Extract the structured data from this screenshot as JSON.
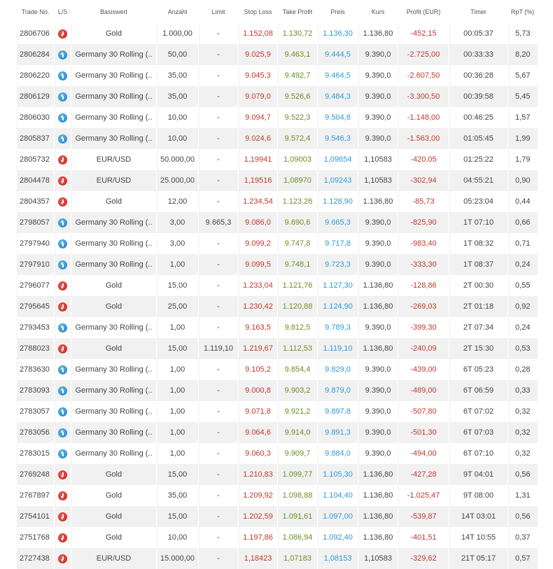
{
  "colors": {
    "stop_loss": "#c0392b",
    "take_profit": "#6b8e23",
    "preis": "#2e9ad6",
    "profit": "#c0392b",
    "long": "#2a8ed0",
    "short": "#d9302a"
  },
  "headers": [
    "Trade No.",
    "L/S",
    "Basiswert",
    "Anzahl",
    "Limit",
    "Stop Loss",
    "Take Profit",
    "Preis",
    "Kurs",
    "Profit (EUR)",
    "Timer",
    "RpT (%)"
  ],
  "rows": [
    {
      "trade": "2806706",
      "ls": "short",
      "ls_icon": "arrow-down-icon",
      "basis": "Gold",
      "anzahl": "1.000,00",
      "limit": "-",
      "sl": "1.152,08",
      "tp": "1.130,72",
      "preis": "1.136,30",
      "kurs": "1.136,80",
      "profit": "-452,15",
      "timer": "00:05:37",
      "rpt": "5,73"
    },
    {
      "trade": "2806284",
      "ls": "long",
      "ls_icon": "arrow-up-icon",
      "basis": "Germany 30 Rolling (..",
      "anzahl": "50,00",
      "limit": "-",
      "sl": "9.025,9",
      "tp": "9.463,1",
      "preis": "9.444,5",
      "kurs": "9.390,0",
      "profit": "-2.725,00",
      "timer": "00:33:33",
      "rpt": "8,20"
    },
    {
      "trade": "2806220",
      "ls": "long",
      "ls_icon": "arrow-up-icon",
      "basis": "Germany 30 Rolling (..",
      "anzahl": "35,00",
      "limit": "-",
      "sl": "9.045,3",
      "tp": "9.492,7",
      "preis": "9.464,5",
      "kurs": "9.390,0",
      "profit": "-2.607,50",
      "timer": "00:36:28",
      "rpt": "5,67"
    },
    {
      "trade": "2806129",
      "ls": "long",
      "ls_icon": "arrow-up-icon",
      "basis": "Germany 30 Rolling (..",
      "anzahl": "35,00",
      "limit": "-",
      "sl": "9.079,0",
      "tp": "9.526,6",
      "preis": "9.484,3",
      "kurs": "9.390,0",
      "profit": "-3.300,50",
      "timer": "00:39:58",
      "rpt": "5,45"
    },
    {
      "trade": "2806030",
      "ls": "long",
      "ls_icon": "arrow-up-icon",
      "basis": "Germany 30 Rolling (..",
      "anzahl": "10,00",
      "limit": "-",
      "sl": "9.094,7",
      "tp": "9.522,3",
      "preis": "9.504,8",
      "kurs": "9.390,0",
      "profit": "-1.148,00",
      "timer": "00:46:25",
      "rpt": "1,57"
    },
    {
      "trade": "2805837",
      "ls": "long",
      "ls_icon": "arrow-up-icon",
      "basis": "Germany 30 Rolling (..",
      "anzahl": "10,00",
      "limit": "-",
      "sl": "9.024,6",
      "tp": "9.572,4",
      "preis": "9.546,3",
      "kurs": "9.390,0",
      "profit": "-1.563,00",
      "timer": "01:05:45",
      "rpt": "1,99"
    },
    {
      "trade": "2805732",
      "ls": "short",
      "ls_icon": "arrow-down-icon",
      "basis": "EUR/USD",
      "anzahl": "50.000,00",
      "limit": "-",
      "sl": "1,19941",
      "tp": "1,09003",
      "preis": "1,09654",
      "kurs": "1,10583",
      "profit": "-420,05",
      "timer": "01:25:22",
      "rpt": "1,79"
    },
    {
      "trade": "2804478",
      "ls": "short",
      "ls_icon": "arrow-down-icon",
      "basis": "EUR/USD",
      "anzahl": "25.000,00",
      "limit": "-",
      "sl": "1,19516",
      "tp": "1,08970",
      "preis": "1,09243",
      "kurs": "1,10583",
      "profit": "-302,94",
      "timer": "04:55:21",
      "rpt": "0,90"
    },
    {
      "trade": "2804357",
      "ls": "short",
      "ls_icon": "arrow-down-icon",
      "basis": "Gold",
      "anzahl": "12,00",
      "limit": "-",
      "sl": "1.234,54",
      "tp": "1.123,26",
      "preis": "1.128,90",
      "kurs": "1.136,80",
      "profit": "-85,73",
      "timer": "05:23:04",
      "rpt": "0,44"
    },
    {
      "trade": "2798057",
      "ls": "long",
      "ls_icon": "arrow-up-icon",
      "basis": "Germany 30 Rolling (..",
      "anzahl": "3,00",
      "limit": "9.665,3",
      "sl": "9.086,0",
      "tp": "9.690,6",
      "preis": "9.665,3",
      "kurs": "9.390,0",
      "profit": "-825,90",
      "timer": "1T 07:10",
      "rpt": "0,66"
    },
    {
      "trade": "2797940",
      "ls": "long",
      "ls_icon": "arrow-up-icon",
      "basis": "Germany 30 Rolling (..",
      "anzahl": "3,00",
      "limit": "-",
      "sl": "9.099,2",
      "tp": "9.747,8",
      "preis": "9.717,8",
      "kurs": "9.390,0",
      "profit": "-983,40",
      "timer": "1T 08:32",
      "rpt": "0,71"
    },
    {
      "trade": "2797910",
      "ls": "long",
      "ls_icon": "arrow-up-icon",
      "basis": "Germany 30 Rolling (..",
      "anzahl": "1,00",
      "limit": "-",
      "sl": "9.099,5",
      "tp": "9.748,1",
      "preis": "9.723,3",
      "kurs": "9.390,0",
      "profit": "-333,30",
      "timer": "1T 08:37",
      "rpt": "0,24"
    },
    {
      "trade": "2796077",
      "ls": "short",
      "ls_icon": "arrow-down-icon",
      "basis": "Gold",
      "anzahl": "15,00",
      "limit": "-",
      "sl": "1.233,04",
      "tp": "1.121,76",
      "preis": "1.127,30",
      "kurs": "1.136,80",
      "profit": "-128,86",
      "timer": "2T 00:30",
      "rpt": "0,55"
    },
    {
      "trade": "2795645",
      "ls": "short",
      "ls_icon": "arrow-down-icon",
      "basis": "Gold",
      "anzahl": "25,00",
      "limit": "-",
      "sl": "1.230,42",
      "tp": "1.120,88",
      "preis": "1.124,90",
      "kurs": "1.136,80",
      "profit": "-269,03",
      "timer": "2T 01:18",
      "rpt": "0,92"
    },
    {
      "trade": "2793453",
      "ls": "long",
      "ls_icon": "arrow-up-icon",
      "basis": "Germany 30 Rolling (..",
      "anzahl": "1,00",
      "limit": "-",
      "sl": "9.163,5",
      "tp": "9.812,5",
      "preis": "9.789,3",
      "kurs": "9.390,0",
      "profit": "-399,30",
      "timer": "2T 07:34",
      "rpt": "0,24"
    },
    {
      "trade": "2788023",
      "ls": "short",
      "ls_icon": "arrow-down-icon",
      "basis": "Gold",
      "anzahl": "15,00",
      "limit": "1.119,10",
      "sl": "1.219,67",
      "tp": "1.112,53",
      "preis": "1.119,10",
      "kurs": "1.136,80",
      "profit": "-240,09",
      "timer": "2T 15:30",
      "rpt": "0,53"
    },
    {
      "trade": "2783630",
      "ls": "long",
      "ls_icon": "arrow-up-icon",
      "basis": "Germany 30 Rolling (..",
      "anzahl": "1,00",
      "limit": "-",
      "sl": "9.105,2",
      "tp": "9.854,4",
      "preis": "9.829,0",
      "kurs": "9.390,0",
      "profit": "-439,00",
      "timer": "6T 05:23",
      "rpt": "0,28"
    },
    {
      "trade": "2783093",
      "ls": "long",
      "ls_icon": "arrow-up-icon",
      "basis": "Germany 30 Rolling (..",
      "anzahl": "1,00",
      "limit": "-",
      "sl": "9.000,8",
      "tp": "9.903,2",
      "preis": "9.879,0",
      "kurs": "9.390,0",
      "profit": "-489,00",
      "timer": "6T 06:59",
      "rpt": "0,33"
    },
    {
      "trade": "2783057",
      "ls": "long",
      "ls_icon": "arrow-up-icon",
      "basis": "Germany 30 Rolling (..",
      "anzahl": "1,00",
      "limit": "-",
      "sl": "9.071,8",
      "tp": "9.921,2",
      "preis": "9.897,8",
      "kurs": "9.390,0",
      "profit": "-507,80",
      "timer": "6T 07:02",
      "rpt": "0,32"
    },
    {
      "trade": "2783056",
      "ls": "long",
      "ls_icon": "arrow-up-icon",
      "basis": "Germany 30 Rolling (..",
      "anzahl": "1,00",
      "limit": "-",
      "sl": "9.064,6",
      "tp": "9.914,0",
      "preis": "9.891,3",
      "kurs": "9.390,0",
      "profit": "-501,30",
      "timer": "6T 07:03",
      "rpt": "0,32"
    },
    {
      "trade": "2783015",
      "ls": "long",
      "ls_icon": "arrow-up-icon",
      "basis": "Germany 30 Rolling (..",
      "anzahl": "1,00",
      "limit": "-",
      "sl": "9.060,3",
      "tp": "9.909,7",
      "preis": "9.884,0",
      "kurs": "9.390,0",
      "profit": "-494,00",
      "timer": "6T 07:10",
      "rpt": "0,32"
    },
    {
      "trade": "2769248",
      "ls": "short",
      "ls_icon": "arrow-down-icon",
      "basis": "Gold",
      "anzahl": "15,00",
      "limit": "-",
      "sl": "1.210,83",
      "tp": "1.099,77",
      "preis": "1.105,30",
      "kurs": "1.136,80",
      "profit": "-427,28",
      "timer": "9T 04:01",
      "rpt": "0,56"
    },
    {
      "trade": "2767897",
      "ls": "short",
      "ls_icon": "arrow-down-icon",
      "basis": "Gold",
      "anzahl": "35,00",
      "limit": "-",
      "sl": "1.209,92",
      "tp": "1.098,88",
      "preis": "1.104,40",
      "kurs": "1.136,80",
      "profit": "-1.025,47",
      "timer": "9T 08:00",
      "rpt": "1,31"
    },
    {
      "trade": "2754101",
      "ls": "short",
      "ls_icon": "arrow-down-icon",
      "basis": "Gold",
      "anzahl": "15,00",
      "limit": "-",
      "sl": "1.202,59",
      "tp": "1.091,61",
      "preis": "1.097,00",
      "kurs": "1.136,80",
      "profit": "-539,87",
      "timer": "14T 03:01",
      "rpt": "0,56"
    },
    {
      "trade": "2751768",
      "ls": "short",
      "ls_icon": "arrow-down-icon",
      "basis": "Gold",
      "anzahl": "10,00",
      "limit": "-",
      "sl": "1.197,86",
      "tp": "1.086,94",
      "preis": "1.092,40",
      "kurs": "1.136,80",
      "profit": "-401,51",
      "timer": "14T 10:55",
      "rpt": "0,37"
    },
    {
      "trade": "2727438",
      "ls": "short",
      "ls_icon": "arrow-down-icon",
      "basis": "EUR/USD",
      "anzahl": "15.000,00",
      "limit": "-",
      "sl": "1,18423",
      "tp": "1,07183",
      "preis": "1,08153",
      "kurs": "1,10583",
      "profit": "-329,62",
      "timer": "21T 05:17",
      "rpt": "0,57"
    }
  ]
}
